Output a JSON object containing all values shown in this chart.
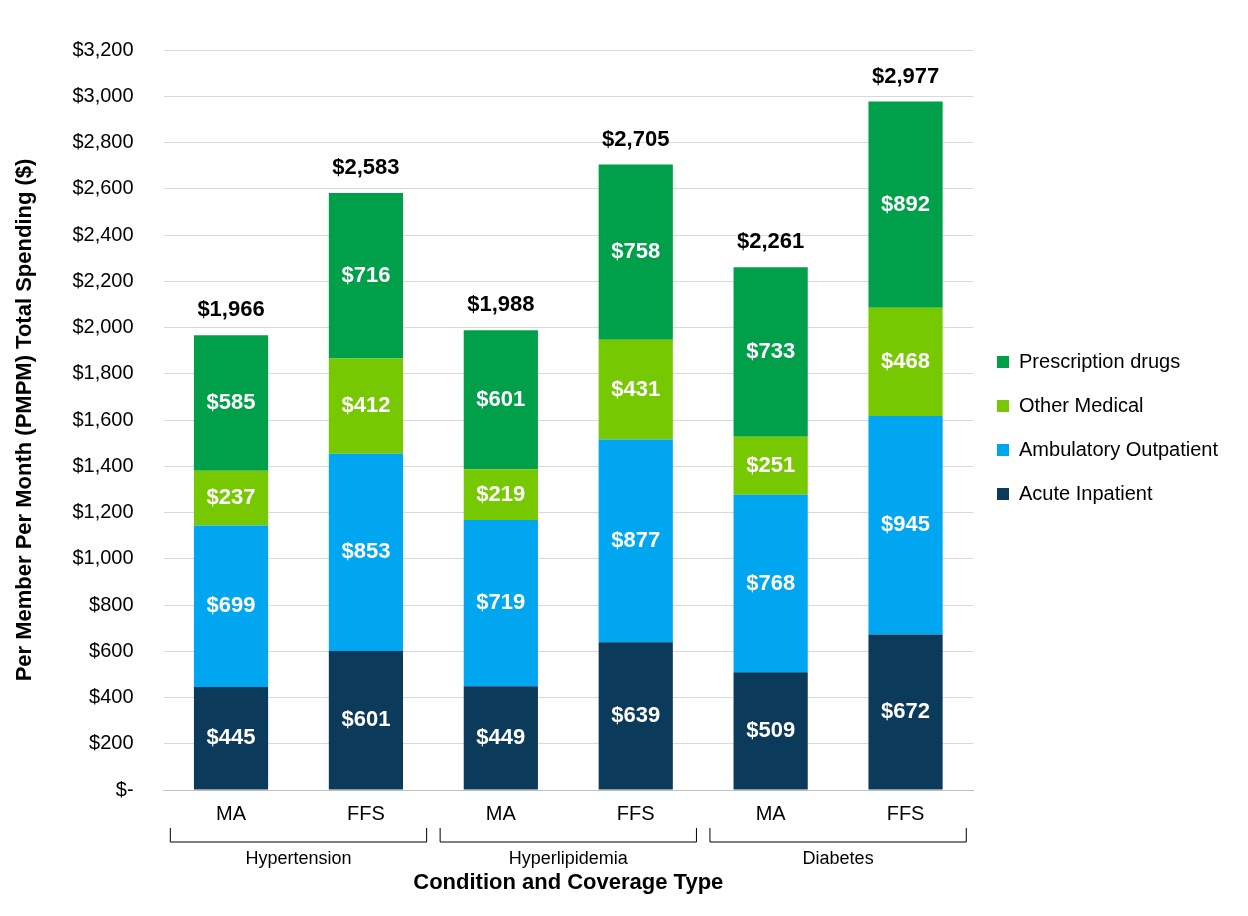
{
  "chart_data": {
    "type": "bar",
    "stacked": true,
    "xlabel": "Condition and Coverage Type",
    "ylabel": "Per Member Per Month (PMPM) Total Spending ($)",
    "categories": [
      "MA",
      "FFS",
      "MA",
      "FFS",
      "MA",
      "FFS"
    ],
    "annotations": [
      "Hypertension",
      "Hyperlipidemia",
      "Diabetes"
    ],
    "series": [
      {
        "name": "Acute Inpatient",
        "color": "#0b3a5b",
        "values": [
          445,
          601,
          449,
          639,
          509,
          672
        ],
        "value_labels": [
          "$445",
          "$601",
          "$449",
          "$639",
          "$509",
          "$672"
        ]
      },
      {
        "name": "Ambulatory Outpatient",
        "color": "#00a6ef",
        "values": [
          699,
          853,
          719,
          877,
          768,
          945
        ],
        "value_labels": [
          "$699",
          "$853",
          "$719",
          "$877",
          "$768",
          "$945"
        ]
      },
      {
        "name": "Other Medical",
        "color": "#76c800",
        "values": [
          237,
          412,
          219,
          431,
          251,
          468
        ],
        "value_labels": [
          "$237",
          "$412",
          "$219",
          "$431",
          "$251",
          "$468"
        ]
      },
      {
        "name": "Prescription drugs",
        "color": "#00a04a",
        "values": [
          585,
          716,
          601,
          758,
          733,
          892
        ],
        "value_labels": [
          "$585",
          "$716",
          "$601",
          "$758",
          "$733",
          "$892"
        ]
      }
    ],
    "totals": [
      "$1,966",
      "$2,583",
      "$1,988",
      "$2,705",
      "$2,261",
      "$2,977"
    ],
    "ylim": [
      0,
      3200
    ],
    "yticks": [
      {
        "value": 0,
        "label": "$-"
      },
      {
        "value": 200,
        "label": "$200"
      },
      {
        "value": 400,
        "label": "$400"
      },
      {
        "value": 600,
        "label": "$600"
      },
      {
        "value": 800,
        "label": "$800"
      },
      {
        "value": 1000,
        "label": "$1,000"
      },
      {
        "value": 1200,
        "label": "$1,200"
      },
      {
        "value": 1400,
        "label": "$1,400"
      },
      {
        "value": 1600,
        "label": "$1,600"
      },
      {
        "value": 1800,
        "label": "$1,800"
      },
      {
        "value": 2000,
        "label": "$2,000"
      },
      {
        "value": 2200,
        "label": "$2,200"
      },
      {
        "value": 2400,
        "label": "$2,400"
      },
      {
        "value": 2600,
        "label": "$2,600"
      },
      {
        "value": 2800,
        "label": "$2,800"
      },
      {
        "value": 3000,
        "label": "$3,000"
      },
      {
        "value": 3200,
        "label": "$3,200"
      }
    ],
    "grid": "y",
    "legend": "right"
  }
}
